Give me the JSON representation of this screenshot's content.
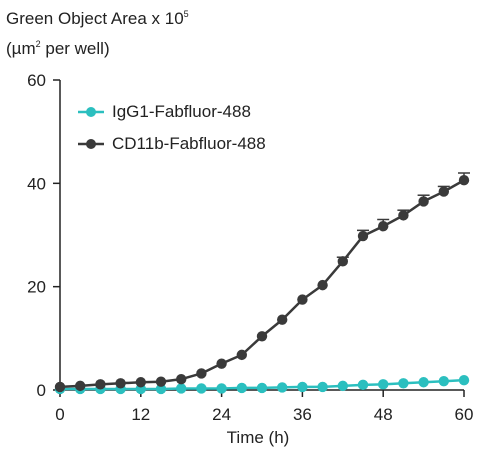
{
  "chart_data": {
    "type": "line",
    "title": "",
    "ylabel_line1_prefix": "Green Object Area x 10",
    "ylabel_line1_exp": "5",
    "ylabel_line2_prefix": "(µm",
    "ylabel_line2_exp": "2",
    "ylabel_line2_suffix": " per well)",
    "xlabel": "Time (h)",
    "xlim": [
      0,
      60
    ],
    "ylim": [
      0,
      60
    ],
    "xticks": [
      0,
      12,
      24,
      36,
      48,
      60
    ],
    "yticks": [
      0,
      20,
      40,
      60
    ],
    "grid": false,
    "legend_position": "top-left",
    "series": [
      {
        "name": "IgG1-Fabfluor-488",
        "color": "#2bbfbf",
        "x": [
          0,
          3,
          6,
          9,
          12,
          15,
          18,
          21,
          24,
          27,
          30,
          33,
          36,
          39,
          42,
          45,
          48,
          51,
          54,
          57,
          60
        ],
        "y": [
          0.2,
          0.2,
          0.2,
          0.2,
          0.2,
          0.2,
          0.3,
          0.3,
          0.3,
          0.4,
          0.4,
          0.5,
          0.6,
          0.6,
          0.8,
          1.0,
          1.1,
          1.3,
          1.5,
          1.7,
          1.9
        ]
      },
      {
        "name": "CD11b-Fabfluor-488",
        "color": "#3a3a3a",
        "x": [
          0,
          3,
          6,
          9,
          12,
          15,
          18,
          21,
          24,
          27,
          30,
          33,
          36,
          39,
          42,
          45,
          48,
          51,
          54,
          57,
          60
        ],
        "y": [
          0.6,
          0.8,
          1.1,
          1.3,
          1.5,
          1.6,
          2.1,
          3.2,
          5.1,
          6.8,
          10.4,
          13.6,
          17.5,
          20.3,
          24.9,
          29.8,
          31.7,
          33.8,
          36.5,
          38.4,
          40.6
        ],
        "err": [
          0,
          0,
          0,
          0,
          0,
          0,
          0,
          0,
          0,
          0,
          0,
          0,
          0,
          0,
          0.8,
          1.1,
          1.3,
          1.0,
          1.2,
          1.0,
          1.4
        ]
      }
    ]
  }
}
